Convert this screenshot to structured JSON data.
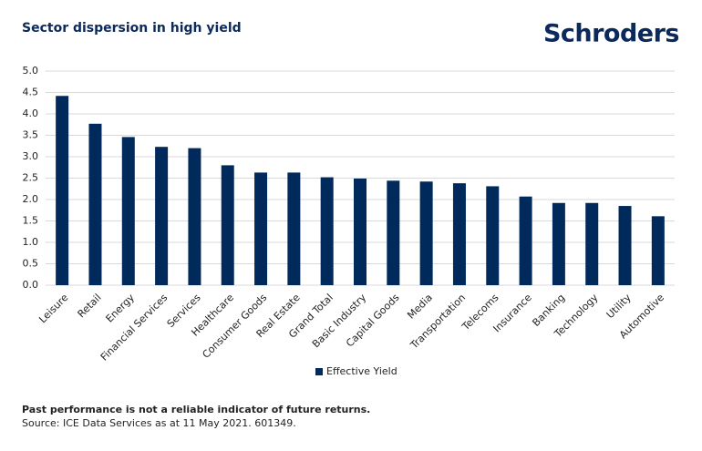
{
  "brand": "Schroders",
  "chart_data": {
    "type": "bar",
    "title": "Sector dispersion in high yield",
    "categories": [
      "Leisure",
      "Retail",
      "Energy",
      "Financial Services",
      "Services",
      "Healthcare",
      "Consumer Goods",
      "Real Estate",
      "Grand Total",
      "Basic Industry",
      "Capital Goods",
      "Media",
      "Transportation",
      "Telecoms",
      "Insurance",
      "Banking",
      "Technology",
      "Utility",
      "Automotive"
    ],
    "series": [
      {
        "name": "Effective Yield",
        "color": "#002a5c",
        "values": [
          4.42,
          3.77,
          3.46,
          3.23,
          3.2,
          2.8,
          2.63,
          2.63,
          2.52,
          2.49,
          2.44,
          2.42,
          2.38,
          2.31,
          2.07,
          1.92,
          1.92,
          1.85,
          1.61
        ]
      }
    ],
    "ylim": [
      0,
      5
    ],
    "yticks": [
      {
        "value": 0,
        "label": "0.0"
      },
      0.5,
      {
        "value": 1,
        "label": "1.0"
      },
      1.5,
      {
        "value": 2,
        "label": "2.0"
      },
      2.5,
      {
        "value": 3,
        "label": "3.0"
      },
      3.5,
      {
        "value": 4,
        "label": "4.0"
      },
      4.5,
      {
        "value": 5,
        "label": "5.0"
      }
    ],
    "grid": true,
    "legend": "bottom"
  },
  "footnote": {
    "disclaimer": "Past performance is not a reliable indicator of future returns.",
    "source": "Source: ICE Data Services as at 11 May 2021. 601349."
  }
}
